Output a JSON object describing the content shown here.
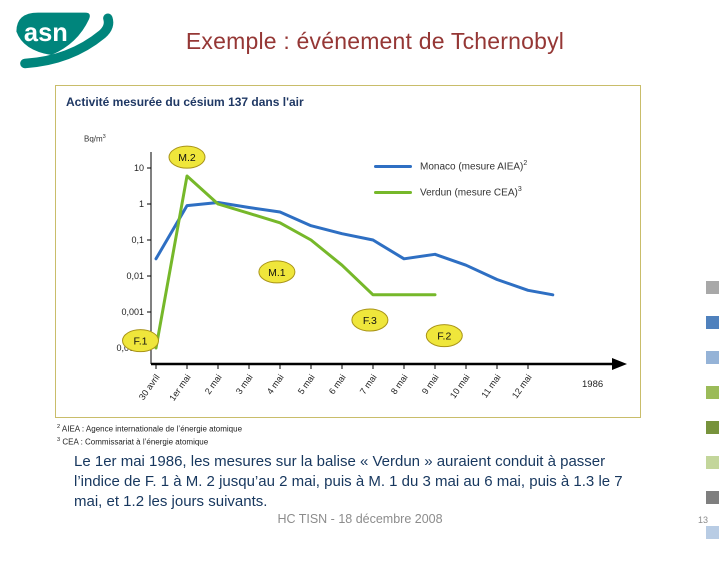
{
  "slide": {
    "title": "Exemple : événement de Tchernobyl",
    "logo_text": "asn",
    "body_text": "Le 1er mai 1986, les mesures sur la balise « Verdun » auraient conduit à passer l’indice de F. 1 à M. 2 jusqu’au 2 mai, puis à M. 1  du 3 mai au 6 mai, puis à 1.3 le 7 mai, et 1.2 les jours suivants.",
    "footer": "HC TISN - 18 décembre 2008",
    "page_number": "13"
  },
  "footnotes": [
    {
      "sup": "2",
      "text": " AIEA : Agence internationale de l’énergie atomique"
    },
    {
      "sup": "3",
      "text": " CEA : Commissariat à l’énergie atomique"
    }
  ],
  "colors": {
    "brand_teal": "#00857c",
    "title_red": "#953735",
    "body_navy": "#17375e",
    "chart_border": "#c9bd6a",
    "footer_gray": "#8c8c8c"
  },
  "chart_data": {
    "type": "line",
    "title": "Activité mesurée du césium 137 dans l'air",
    "y_unit": "Bq/m",
    "y_unit_sup": "3",
    "y_scale": "log",
    "ytick_values": [
      10,
      1,
      0.1,
      0.01,
      0.001,
      0.0001
    ],
    "ytick_labels": [
      "10",
      "1",
      "0,1",
      "0,01",
      "0,001",
      "0,0001"
    ],
    "categories": [
      "30 avril",
      "1er mai",
      "2 mai",
      "3 mai",
      "4 mai",
      "5 mai",
      "6 mai",
      "7 mai",
      "8 mai",
      "9 mai",
      "10 mai",
      "11 mai",
      "12 mai"
    ],
    "x_end_label": "1986",
    "legend_position": "top-right",
    "grid": false,
    "series": [
      {
        "name": "Monaco (mesure AIEA)",
        "name_sup": "2",
        "color": "#2e6fc3",
        "x": [
          0,
          1,
          2,
          3,
          4,
          5,
          6,
          7,
          8,
          9,
          10,
          11,
          12,
          12.8
        ],
        "values": [
          0.03,
          0.9,
          1.1,
          0.8,
          0.6,
          0.25,
          0.15,
          0.1,
          0.03,
          0.04,
          0.02,
          0.008,
          0.004,
          0.003
        ]
      },
      {
        "name": "Verdun (mesure CEA)",
        "name_sup": "3",
        "color": "#76b82a",
        "x": [
          0,
          1,
          2,
          3,
          4,
          5,
          6,
          7,
          9
        ],
        "values": [
          0.0001,
          6,
          1.0,
          0.55,
          0.3,
          0.1,
          0.02,
          0.003,
          0.003
        ]
      }
    ],
    "callouts": [
      {
        "label": "M.2",
        "x": 1,
        "value": 20
      },
      {
        "label": "M.1",
        "x": 3.9,
        "value": 0.013
      },
      {
        "label": "F.3",
        "x": 6.9,
        "value": 0.0006
      },
      {
        "label": "F.2",
        "x": 9.3,
        "value": 0.00022
      },
      {
        "label": "F.1",
        "x": -0.5,
        "value": 0.00016
      }
    ],
    "callout_fill": "#efe63b",
    "callout_stroke": "#a99417"
  },
  "decoration": {
    "squares": [
      "#a8a8a8",
      "#4f81bd",
      "#95b3d7",
      "#9bbb59",
      "#77933c",
      "#c3d69b",
      "#7f7f7f",
      "#b8cce4"
    ]
  }
}
